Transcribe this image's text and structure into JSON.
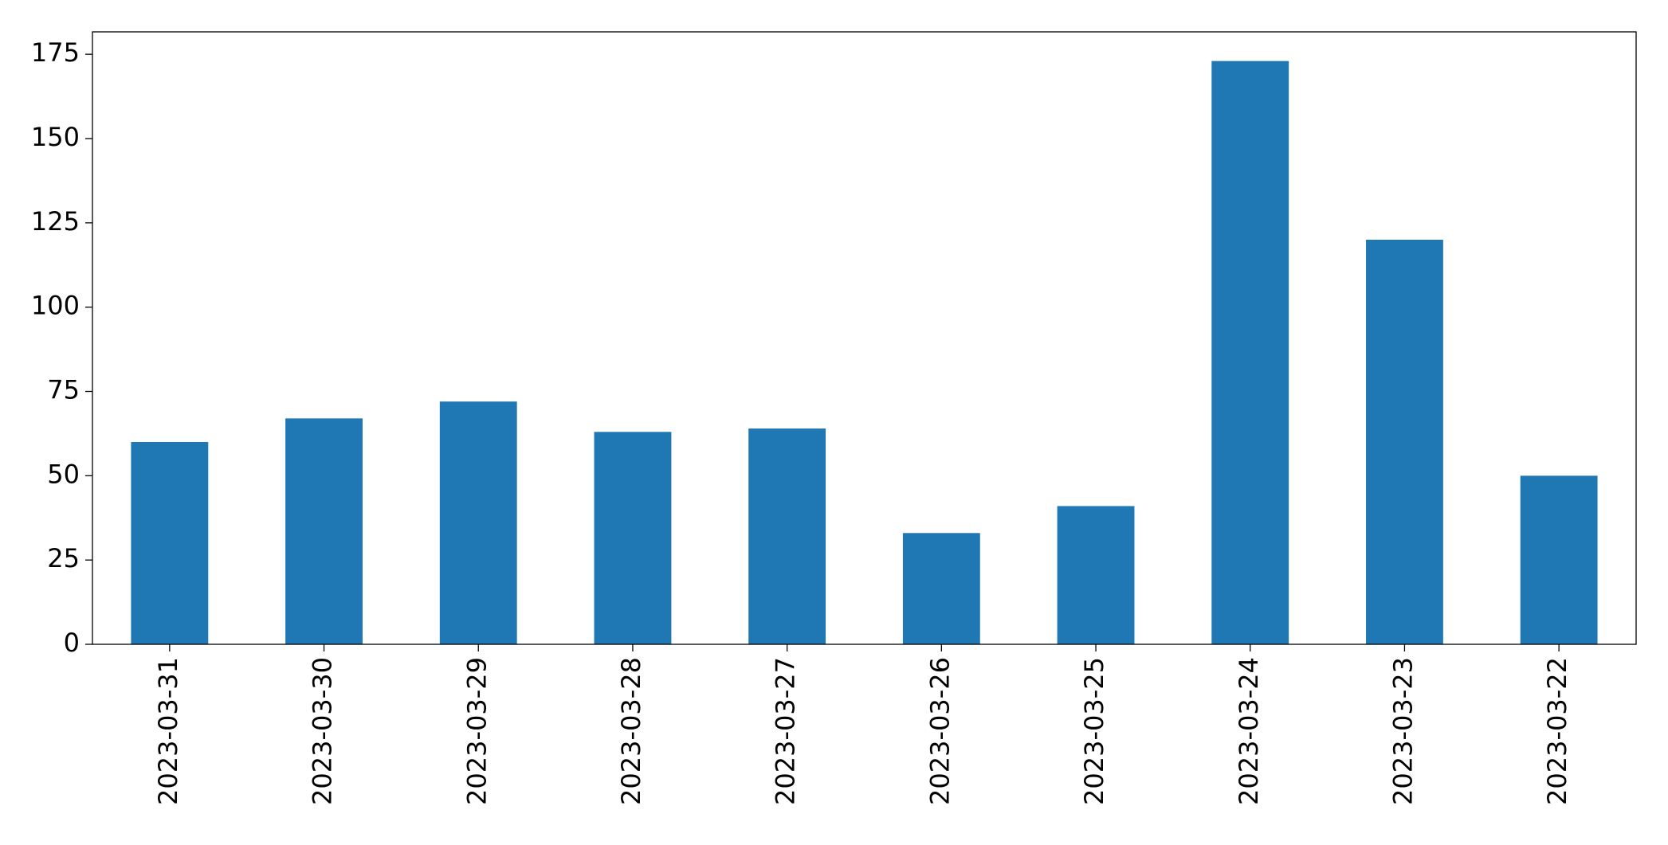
{
  "chart_data": {
    "type": "bar",
    "categories": [
      "2023-03-31",
      "2023-03-30",
      "2023-03-29",
      "2023-03-28",
      "2023-03-27",
      "2023-03-26",
      "2023-03-25",
      "2023-03-24",
      "2023-03-23",
      "2023-03-22"
    ],
    "values": [
      60,
      67,
      72,
      63,
      64,
      33,
      41,
      173,
      120,
      50
    ],
    "color": "#1f77b4",
    "ylim": [
      0,
      181.65
    ],
    "yticks": [
      0,
      25,
      50,
      75,
      100,
      125,
      150,
      175
    ],
    "grid": false
  }
}
